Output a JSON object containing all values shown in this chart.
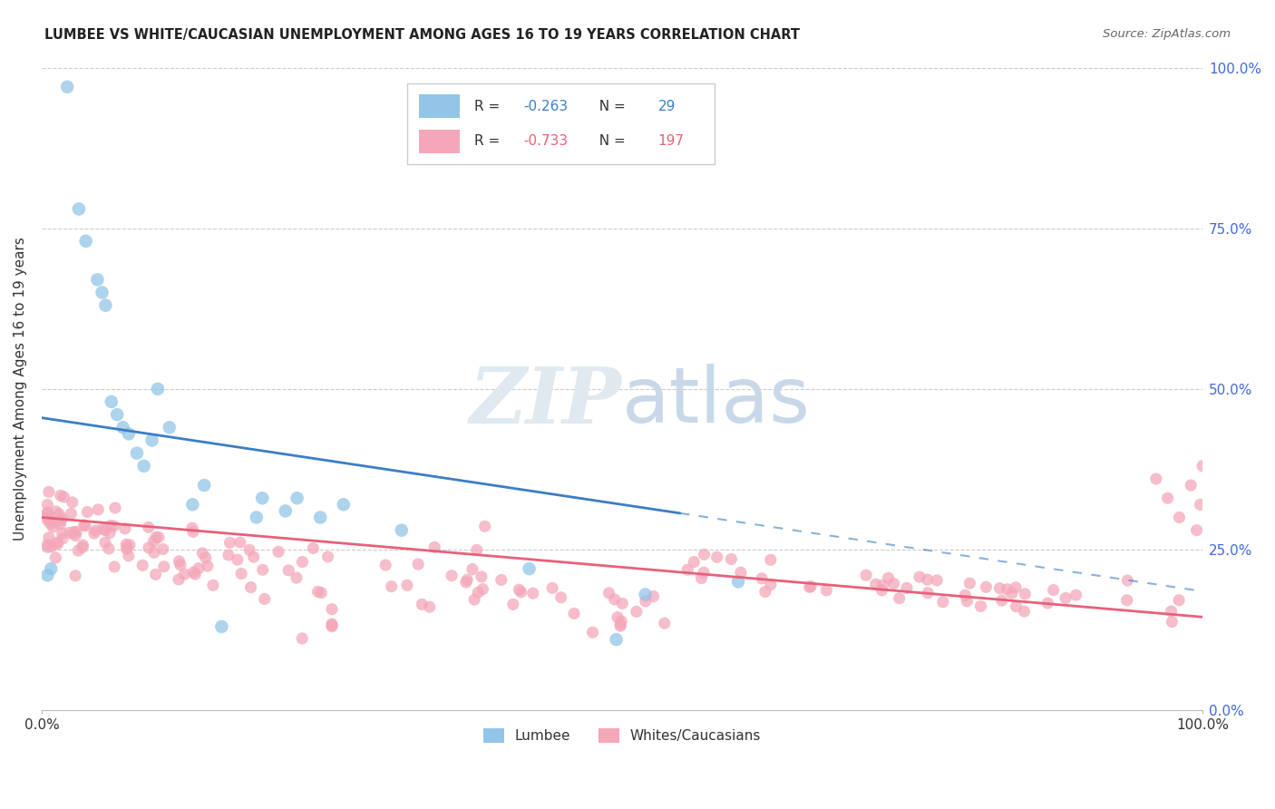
{
  "title": "LUMBEE VS WHITE/CAUCASIAN UNEMPLOYMENT AMONG AGES 16 TO 19 YEARS CORRELATION CHART",
  "source": "Source: ZipAtlas.com",
  "ylabel": "Unemployment Among Ages 16 to 19 years",
  "lumbee_R": -0.263,
  "lumbee_N": 29,
  "white_R": -0.733,
  "white_N": 197,
  "lumbee_color": "#92C5E8",
  "white_color": "#F4A7B9",
  "lumbee_line_color": "#3A7EC6",
  "white_line_color": "#E8607A",
  "background_color": "#ffffff",
  "grid_color": "#cccccc",
  "axis_text_color": "#4169E1",
  "title_color": "#222222",
  "watermark_color": "#e0e8f0",
  "xlim": [
    0.0,
    1.0
  ],
  "ylim": [
    0.0,
    1.0
  ],
  "ytick_positions": [
    0.0,
    0.25,
    0.5,
    0.75,
    1.0
  ],
  "ytick_labels": [
    "0.0%",
    "25.0%",
    "50.0%",
    "75.0%",
    "100.0%"
  ],
  "xtick_positions": [
    0.0,
    1.0
  ],
  "xtick_labels": [
    "0.0%",
    "100.0%"
  ]
}
